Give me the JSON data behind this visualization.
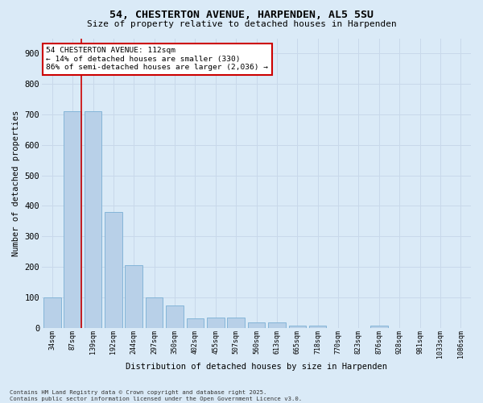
{
  "title_line1": "54, CHESTERTON AVENUE, HARPENDEN, AL5 5SU",
  "title_line2": "Size of property relative to detached houses in Harpenden",
  "xlabel": "Distribution of detached houses by size in Harpenden",
  "ylabel": "Number of detached properties",
  "categories": [
    "34sqm",
    "87sqm",
    "139sqm",
    "192sqm",
    "244sqm",
    "297sqm",
    "350sqm",
    "402sqm",
    "455sqm",
    "507sqm",
    "560sqm",
    "613sqm",
    "665sqm",
    "718sqm",
    "770sqm",
    "823sqm",
    "876sqm",
    "928sqm",
    "981sqm",
    "1033sqm",
    "1086sqm"
  ],
  "values": [
    100,
    710,
    710,
    380,
    205,
    100,
    73,
    32,
    33,
    33,
    18,
    18,
    8,
    8,
    0,
    0,
    8,
    0,
    0,
    0,
    0
  ],
  "bar_color": "#b8d0e8",
  "bar_edge_color": "#7aafd4",
  "grid_color": "#c8d8ea",
  "background_color": "#daeaf7",
  "red_line_color": "#cc0000",
  "red_line_x": 1.43,
  "annotation_text": "54 CHESTERTON AVENUE: 112sqm\n← 14% of detached houses are smaller (330)\n86% of semi-detached houses are larger (2,036) →",
  "annotation_box_color": "#ffffff",
  "annotation_box_edge": "#cc0000",
  "ylim": [
    0,
    950
  ],
  "yticks": [
    0,
    100,
    200,
    300,
    400,
    500,
    600,
    700,
    800,
    900
  ],
  "footer_line1": "Contains HM Land Registry data © Crown copyright and database right 2025.",
  "footer_line2": "Contains public sector information licensed under the Open Government Licence v3.0."
}
